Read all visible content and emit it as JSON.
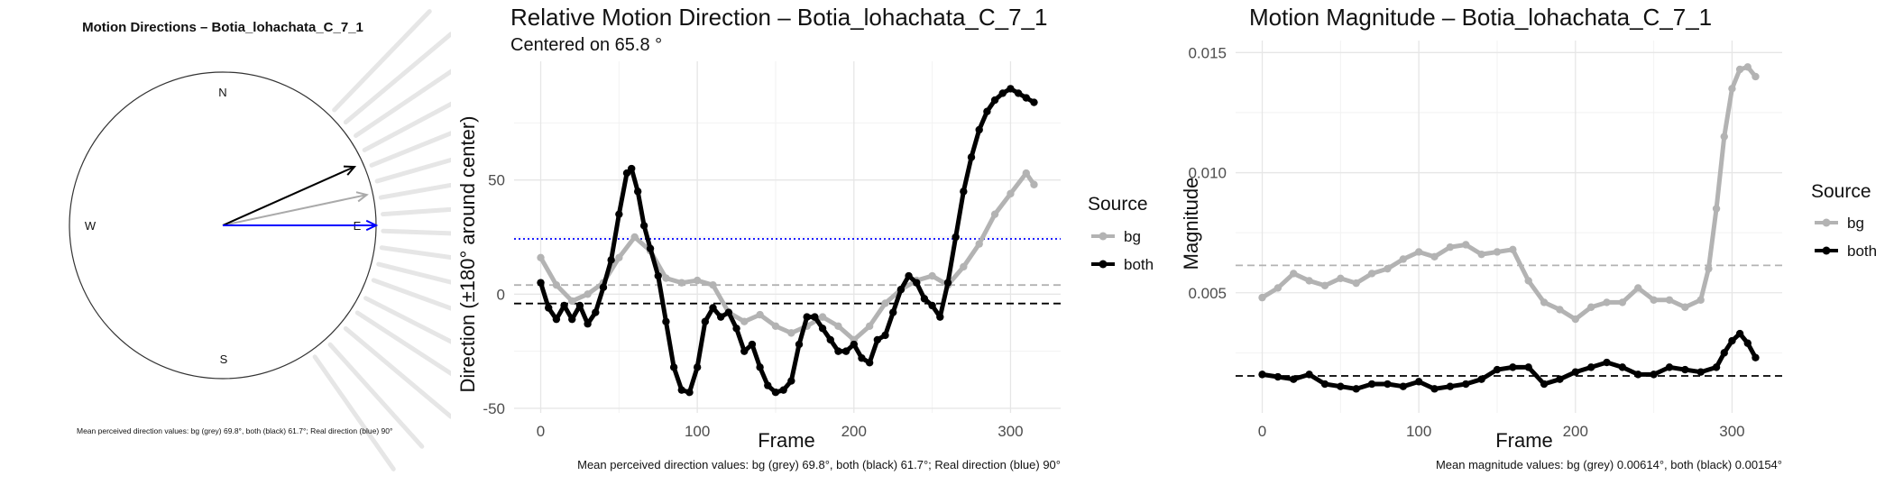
{
  "chart_data": [
    {
      "type": "polar",
      "title": "Motion Directions – Botia_lohachata_C_7_1",
      "compass_labels": [
        "N",
        "E",
        "S",
        "W"
      ],
      "arrows": [
        {
          "name": "bg",
          "color": "#aaaaaa",
          "angle_deg": 12,
          "length": 0.96
        },
        {
          "name": "both",
          "color": "#000000",
          "angle_deg": 24,
          "length": 0.94
        },
        {
          "name": "real",
          "color": "#0000ff",
          "angle_deg": 0,
          "length": 1.0
        }
      ],
      "rose_angles_deg": [
        -55,
        -48,
        -40,
        -33,
        -27,
        -20,
        -14,
        -8,
        -2,
        4,
        10,
        16,
        22,
        28,
        34,
        40,
        46
      ],
      "caption": "Mean perceived direction values: bg (grey) 69.8°, both (black) 61.7°; Real direction (blue) 90°"
    },
    {
      "type": "line",
      "title": "Relative Motion Direction – Botia_lohachata_C_7_1",
      "subtitle": "Centered on  65.8 °",
      "xlabel": "Frame",
      "ylabel": "Direction (±180° around center)",
      "xlim": [
        -17,
        332
      ],
      "ylim": [
        -52,
        102
      ],
      "xticks": [
        0,
        100,
        200,
        300
      ],
      "yticks": [
        -50,
        0,
        50
      ],
      "grid": true,
      "legend": {
        "title": "Source",
        "position": "right",
        "entries": [
          "bg",
          "both"
        ]
      },
      "hlines": [
        {
          "name": "bg mean",
          "value": 4.0,
          "color": "#b3b3b3",
          "dash": "dashed"
        },
        {
          "name": "both mean",
          "value": -4.1,
          "color": "#000000",
          "dash": "dashed"
        },
        {
          "name": "real",
          "value": 24.2,
          "color": "#0000ff",
          "dash": "dotted"
        }
      ],
      "series": [
        {
          "name": "bg",
          "color": "#b3b3b3",
          "x": [
            0,
            10,
            20,
            30,
            40,
            50,
            60,
            70,
            80,
            90,
            100,
            110,
            120,
            130,
            140,
            150,
            160,
            170,
            180,
            190,
            200,
            210,
            220,
            230,
            240,
            250,
            260,
            270,
            280,
            290,
            300,
            310,
            315
          ],
          "values": [
            16,
            4,
            -3,
            0,
            5,
            16,
            25,
            19,
            7,
            5,
            6,
            4,
            -8,
            -12,
            -9,
            -14,
            -17,
            -14,
            -10,
            -14,
            -20,
            -14,
            -4,
            2,
            6,
            8,
            4,
            12,
            22,
            35,
            44,
            53,
            48
          ]
        },
        {
          "name": "both",
          "color": "#000000",
          "x": [
            0,
            5,
            10,
            15,
            20,
            25,
            30,
            35,
            40,
            45,
            50,
            55,
            58,
            62,
            66,
            70,
            75,
            80,
            85,
            90,
            95,
            100,
            105,
            110,
            115,
            120,
            125,
            130,
            135,
            140,
            145,
            150,
            155,
            160,
            165,
            170,
            175,
            180,
            185,
            190,
            195,
            200,
            205,
            210,
            215,
            220,
            225,
            230,
            235,
            240,
            245,
            250,
            255,
            260,
            265,
            270,
            275,
            280,
            285,
            290,
            295,
            300,
            305,
            310,
            315
          ],
          "values": [
            5,
            -6,
            -11,
            -5,
            -11,
            -5,
            -13,
            -8,
            3,
            15,
            35,
            53,
            55,
            45,
            30,
            20,
            8,
            -12,
            -32,
            -42,
            -43,
            -32,
            -12,
            -6,
            -10,
            -8,
            -15,
            -25,
            -22,
            -32,
            -40,
            -43,
            -42,
            -38,
            -22,
            -10,
            -10,
            -15,
            -20,
            -25,
            -25,
            -22,
            -28,
            -30,
            -20,
            -18,
            -8,
            2,
            8,
            5,
            -2,
            -5,
            -10,
            5,
            25,
            45,
            60,
            72,
            80,
            85,
            88,
            90,
            88,
            86,
            84
          ]
        }
      ],
      "caption": "Mean perceived direction values: bg (grey) 69.8°, both (black) 61.7°; Real direction (blue) 90°"
    },
    {
      "type": "line",
      "title": "Motion Magnitude – Botia_lohachata_C_7_1",
      "xlabel": "Frame",
      "ylabel": "Magnitude",
      "xlim": [
        -17,
        332
      ],
      "ylim": [
        0,
        0.0155
      ],
      "xticks": [
        0,
        100,
        200,
        300
      ],
      "yticks": [
        0.005,
        0.01,
        0.015
      ],
      "grid": true,
      "legend": {
        "title": "Source",
        "position": "right",
        "entries": [
          "bg",
          "both"
        ]
      },
      "hlines": [
        {
          "name": "bg mean",
          "value": 0.00614,
          "color": "#b3b3b3",
          "dash": "dashed"
        },
        {
          "name": "both mean",
          "value": 0.00154,
          "color": "#000000",
          "dash": "dashed"
        }
      ],
      "series": [
        {
          "name": "bg",
          "color": "#b3b3b3",
          "x": [
            0,
            10,
            20,
            30,
            40,
            50,
            60,
            70,
            80,
            90,
            100,
            110,
            120,
            130,
            140,
            150,
            160,
            170,
            180,
            190,
            200,
            210,
            220,
            230,
            240,
            250,
            260,
            270,
            280,
            285,
            290,
            295,
            300,
            305,
            310,
            315
          ],
          "values": [
            0.0048,
            0.0052,
            0.0058,
            0.0055,
            0.0053,
            0.0056,
            0.0054,
            0.0058,
            0.006,
            0.0064,
            0.0067,
            0.0065,
            0.0069,
            0.007,
            0.0066,
            0.0067,
            0.0068,
            0.0055,
            0.0046,
            0.0043,
            0.0039,
            0.0044,
            0.0046,
            0.0046,
            0.0052,
            0.0047,
            0.0047,
            0.0044,
            0.0047,
            0.006,
            0.0085,
            0.0115,
            0.0135,
            0.0143,
            0.0144,
            0.014
          ]
        },
        {
          "name": "both",
          "color": "#000000",
          "x": [
            0,
            10,
            20,
            30,
            40,
            50,
            60,
            70,
            80,
            90,
            100,
            110,
            120,
            130,
            140,
            150,
            160,
            170,
            180,
            190,
            200,
            210,
            220,
            230,
            240,
            250,
            260,
            270,
            280,
            290,
            295,
            300,
            305,
            310,
            315
          ],
          "values": [
            0.0016,
            0.0015,
            0.0014,
            0.0016,
            0.0012,
            0.0011,
            0.001,
            0.0012,
            0.0012,
            0.0011,
            0.0013,
            0.001,
            0.0011,
            0.0012,
            0.0014,
            0.0018,
            0.0019,
            0.0019,
            0.0012,
            0.0014,
            0.0017,
            0.0019,
            0.0021,
            0.0019,
            0.0016,
            0.0016,
            0.0019,
            0.0018,
            0.0017,
            0.0019,
            0.0025,
            0.003,
            0.0033,
            0.0029,
            0.0023
          ]
        }
      ],
      "caption": "Mean magnitude values: bg (grey) 0.00614°, both (black) 0.00154°"
    }
  ]
}
